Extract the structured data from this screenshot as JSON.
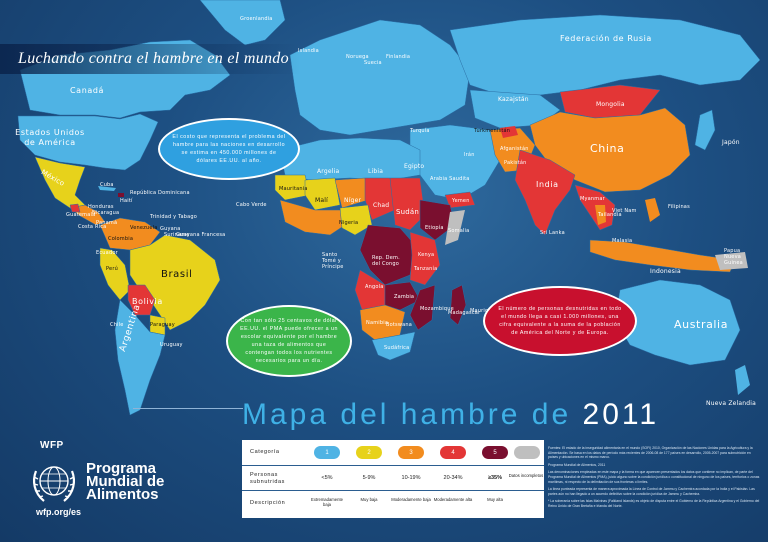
{
  "subtitle": "Luchando contra el hambre en el mundo",
  "title": {
    "text": "Mapa del hambre de",
    "year": "2011"
  },
  "bubbles": {
    "blue": "El costo que representa el problema del hambre para las naciones en desarrollo se estima en 450.000 millones de dólares EE.UU. al año.",
    "green": "Con tan sólo 25 centavos de dólar EE.UU. el PMA puede ofrecer a un escolar equivalente por el hambre una taza de alimentos que contengan todos los nutrientes necesarios para un día.",
    "red": "El número de personas desnutridas en todo el mundo llega a casi 1.000 millones, una cifra equivalente a la suma de la población de América del Norte y de Europa."
  },
  "countries": {
    "rusia": "Federación de Rusia",
    "canada": "Canadá",
    "eeuu": "Estados Unidos de América",
    "mexico": "México",
    "brasil": "Brasil",
    "bolivia": "Bolivia",
    "argentina": "Argentina",
    "venezuela": "Venezuela",
    "colombia": "Colombia",
    "peru": "Perú",
    "chile": "Chile",
    "paraguay": "Paraguay",
    "guyana": "Guyana",
    "suriname": "Suriname",
    "guayana": "Guayana Francesa",
    "ecuador": "Ecuador",
    "uruguay": "Uruguay",
    "argelia": "Argelia",
    "libia": "Libia",
    "egipto": "Egipto",
    "mali": "Malí",
    "niger": "Níger",
    "chad": "Chad",
    "sudan": "Sudán",
    "mauritania": "Mauritania",
    "nigeria": "Nigeria",
    "etiopia": "Etiopía",
    "congo": "Rep. Dem. del Congo",
    "angola": "Angola",
    "kenya": "Kenya",
    "tanzania": "Tanzanía",
    "zambia": "Zambia",
    "madagascar": "Madagascar",
    "sudafrica": "Sudáfrica",
    "namibia": "Namibia",
    "botswana": "Botswana",
    "mozambique": "Mozambique",
    "somalia": "Somalia",
    "cabo_verde": "Cabo Verde",
    "santo_tome": "Santo Tomé y Príncipe",
    "mauricio": "Mauricio",
    "kazajstan": "Kazajstán",
    "mongolia": "Mongolia",
    "china": "China",
    "india": "India",
    "japon": "Japón",
    "indonesia": "Indonesia",
    "australia": "Australia",
    "nueva_zelandia": "Nueva Zelandia",
    "papua": "Papua Nueva Guinea",
    "filipinas": "Filipinas",
    "turkmenistan": "Turkmenistán",
    "afganistan": "Afganistán",
    "iran": "Irán",
    "arabia": "Arabia Saudita",
    "yemen": "Yemen",
    "pakistan": "Pakistán",
    "tailandia": "Tailandia",
    "myanmar": "Myanmar",
    "viet_nam": "Viet Nam",
    "malasia": "Malasia",
    "groenlandia": "Groenlandia",
    "islandia": "Islandia",
    "noruega": "Noruega",
    "suecia": "Suecia",
    "finlandia": "Finlandia",
    "turquia": "Turquía",
    "sri_lanka": "Sri Lanka",
    "republica_dominicana": "República Dominicana",
    "cuba": "Cuba",
    "haiti": "Haití",
    "guatemala": "Guatemala",
    "honduras": "Honduras",
    "nicaragua": "Nicaragua",
    "costa_rica": "Costa Rica",
    "panama": "Panamá",
    "trinidad": "Trinidad y Tabago"
  },
  "legend": {
    "labels": {
      "categoria": "Categoría",
      "personas": "Personas subnutridas",
      "descripcion": "Descripción"
    },
    "categories": [
      {
        "num": "1",
        "pct": "<5%",
        "desc": "Extremadamente baja",
        "color": "#4fb3e4"
      },
      {
        "num": "2",
        "pct": "5-9%",
        "desc": "Muy baja",
        "color": "#e7d21b"
      },
      {
        "num": "3",
        "pct": "10-19%",
        "desc": "Moderadamente baja",
        "color": "#f28c1f"
      },
      {
        "num": "4",
        "pct": "20-34%",
        "desc": "Moderadamente alta",
        "color": "#e33636"
      },
      {
        "num": "5",
        "pct": "≥35%",
        "desc": "Muy alta",
        "color": "#7a0f2f"
      },
      {
        "num": "",
        "pct": "Datos incompletos",
        "desc": "",
        "color": "#bfbfbf"
      }
    ]
  },
  "logo": {
    "abbr": "WFP",
    "name": "Programa Mundial de Alimentos",
    "url": "wfp.org/es"
  },
  "notes": [
    "Fuentes: El estado de la inseguridad alimentaria en el mundo (SOFI) 2010, Organización de las Naciones Unidas para la Agricultura y la Alimentación. Se basa en los datos de período más recientes de 2006-08 de 177 países en desarrollo, 2005-2007 para subnutrición en países y ubicaciones en el mismo marco.",
    "Programa Mundial de Alimentos, 2011",
    "Las denominaciones empleadas en este mapa y la forma en que aparecen presentados los datos que contiene no implican, de parte del Programa Mundial de Alimentos (PMA), juicio alguno sobre la condición jurídica o constitucional de ninguno de los países, territorios o zonas marítimas, ni respecto de la delimitación de sus fronteras o límites.",
    "La línea punteada representa de manera aproximada la Línea de Control de Jammu y Cachemira acordada por la India y el Pakistán. Las partes aún no han llegado a un acuerdo definitivo sobre la condición jurídica de Jammu y Cachemira.",
    "* La soberanía sobre las Islas Malvinas (Falkland Islands) es objeto de disputa entre el Gobierno de la República Argentina y el Gobierno del Reino Unido de Gran Bretaña e Irlanda del Norte."
  ],
  "colors": {
    "ocean": "#1d4f82",
    "cat1": "#4fb3e4",
    "cat2": "#e7d21b",
    "cat3": "#f28c1f",
    "cat4": "#e33636",
    "cat5": "#7a0f2f",
    "nodata": "#bfbfbf",
    "title_blue": "#3fb1e6"
  }
}
